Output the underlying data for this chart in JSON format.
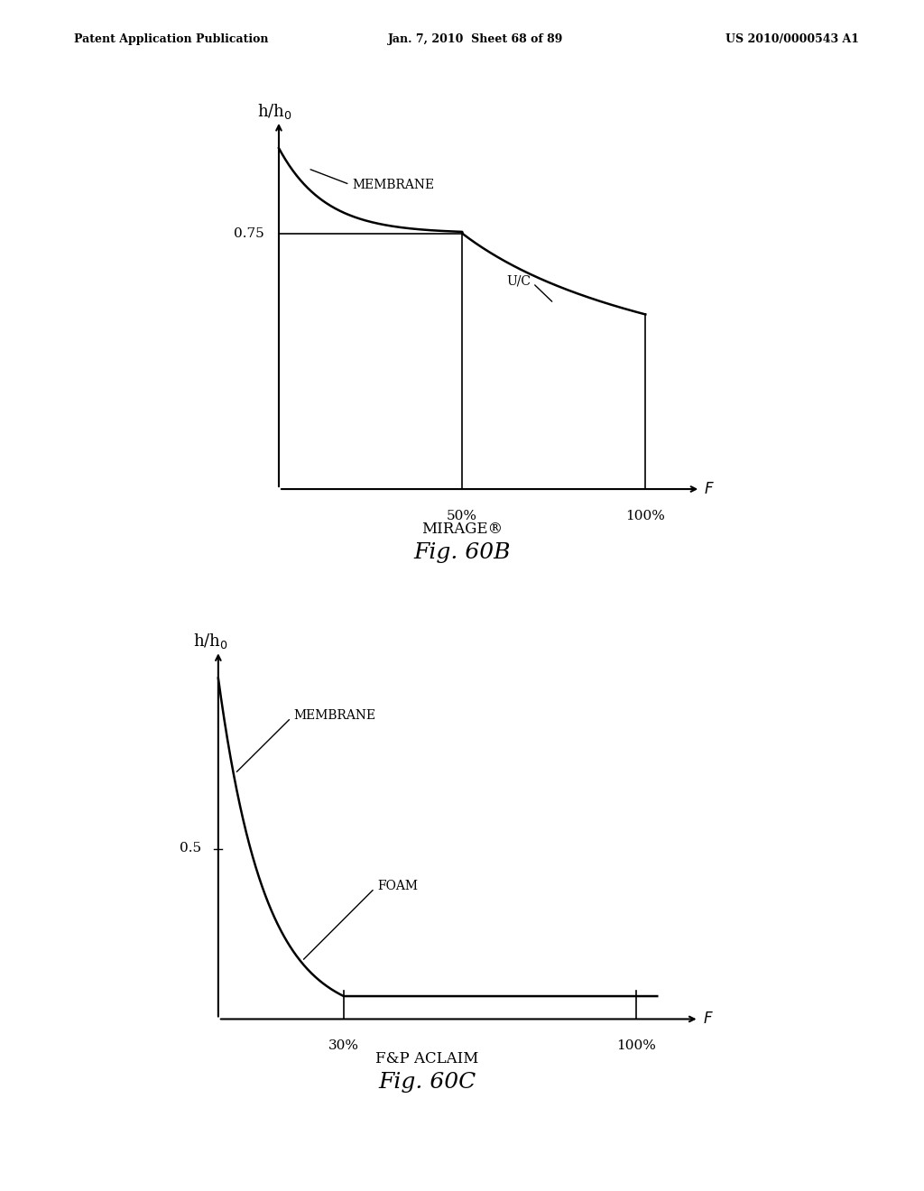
{
  "header_left": "Patent Application Publication",
  "header_mid": "Jan. 7, 2010  Sheet 68 of 89",
  "header_right": "US 2010/0000543 A1",
  "fig60b": {
    "ylabel_main": "h/h",
    "ylabel_sub": "0",
    "xlabel": "F",
    "tick_50": "50%",
    "tick_100": "100%",
    "ytick_075": "0.75",
    "membrane_label": "MEMBRANE",
    "uc_label": "U/C",
    "subtitle": "MIRAGE®",
    "fig_label": "Fig. 60B"
  },
  "fig60c": {
    "ylabel_main": "h/h",
    "ylabel_sub": "0",
    "xlabel": "F",
    "tick_30": "30%",
    "tick_100": "100%",
    "ytick_05": "0.5",
    "membrane_label": "MEMBRANE",
    "foam_label": "FOAM",
    "subtitle": "F&P ACLAIM",
    "fig_label": "Fig. 60C"
  },
  "bg_color": "#ffffff",
  "line_color": "#000000",
  "text_color": "#000000",
  "font_size_header": 9,
  "font_size_label": 12,
  "font_size_tick": 11,
  "font_size_annotation": 10,
  "font_size_subtitle": 12,
  "font_size_fig": 18
}
